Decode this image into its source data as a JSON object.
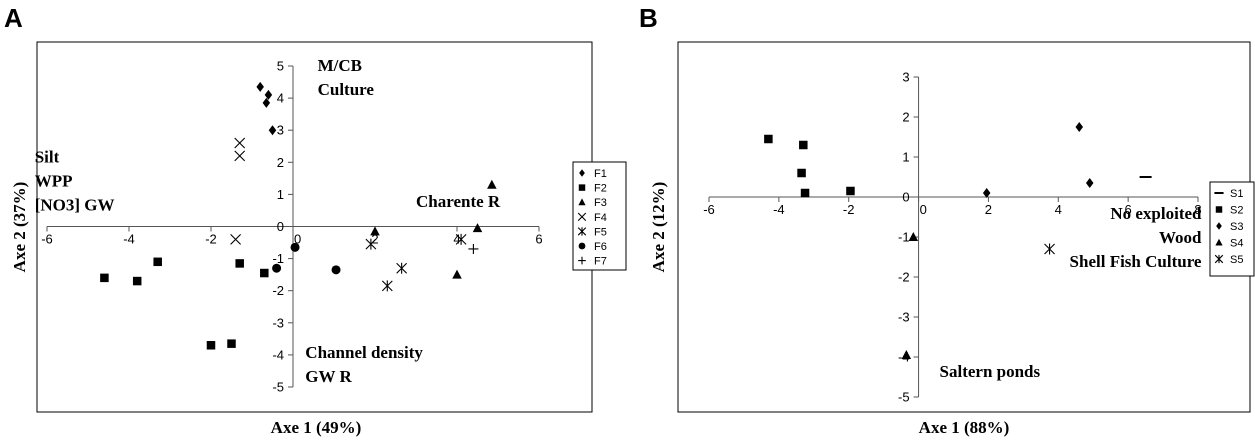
{
  "chart_data": [
    {
      "type": "scatter",
      "panel_label": "A",
      "xlabel": "Axe 1 (49%)",
      "ylabel": "Axe 2 (37%)",
      "xlim": [
        -6,
        6
      ],
      "ylim": [
        -5,
        5
      ],
      "xticks": [
        -6,
        -4,
        -2,
        0,
        2,
        4,
        6
      ],
      "yticks": [
        -5,
        -4,
        -3,
        -2,
        -1,
        0,
        1,
        2,
        3,
        4,
        5
      ],
      "legend_position": "right",
      "series": [
        {
          "name": "F1",
          "marker": "diamond",
          "points": [
            [
              -0.8,
              4.35
            ],
            [
              -0.6,
              4.1
            ],
            [
              -0.65,
              3.85
            ],
            [
              -0.5,
              3.0
            ]
          ]
        },
        {
          "name": "F2",
          "marker": "square",
          "points": [
            [
              -4.6,
              -1.6
            ],
            [
              -3.8,
              -1.7
            ],
            [
              -3.3,
              -1.1
            ],
            [
              -2.0,
              -3.7
            ],
            [
              -1.5,
              -3.65
            ],
            [
              -1.3,
              -1.15
            ],
            [
              -0.7,
              -1.45
            ]
          ]
        },
        {
          "name": "F3",
          "marker": "triangle",
          "points": [
            [
              2.0,
              -0.15
            ],
            [
              4.0,
              -1.5
            ],
            [
              4.5,
              -0.05
            ],
            [
              4.85,
              1.3
            ]
          ]
        },
        {
          "name": "F4",
          "marker": "x",
          "points": [
            [
              -1.3,
              2.6
            ],
            [
              -1.3,
              2.2
            ],
            [
              -1.4,
              -0.4
            ]
          ]
        },
        {
          "name": "F5",
          "marker": "star",
          "points": [
            [
              1.9,
              -0.55
            ],
            [
              2.3,
              -1.85
            ],
            [
              2.65,
              -1.3
            ],
            [
              4.1,
              -0.4
            ]
          ]
        },
        {
          "name": "F6",
          "marker": "circle",
          "points": [
            [
              -0.4,
              -1.3
            ],
            [
              0.05,
              -0.65
            ],
            [
              1.05,
              -1.35
            ]
          ]
        },
        {
          "name": "F7",
          "marker": "plus",
          "points": [
            [
              4.4,
              -0.7
            ]
          ]
        }
      ],
      "annotations": [
        {
          "lines": [
            "M/CB",
            "Culture"
          ],
          "x": 0.6,
          "y": 4.85,
          "anchor": "start"
        },
        {
          "lines": [
            "Silt",
            "WPP",
            "[NO3] GW"
          ],
          "x": -6.3,
          "y": 2.0,
          "anchor": "start"
        },
        {
          "lines": [
            "Charente R"
          ],
          "x": 3.0,
          "y": 0.6,
          "anchor": "start"
        },
        {
          "lines": [
            "Channel density",
            "GW R"
          ],
          "x": 0.3,
          "y": -4.1,
          "anchor": "start"
        }
      ]
    },
    {
      "type": "scatter",
      "panel_label": "B",
      "xlabel": "Axe 1 (88%)",
      "ylabel": "Axe 2 (12%)",
      "xlim": [
        -6,
        8
      ],
      "ylim": [
        -5,
        3
      ],
      "xticks": [
        -6,
        -4,
        -2,
        0,
        2,
        4,
        6,
        8
      ],
      "yticks": [
        -5,
        -4,
        -3,
        -2,
        -1,
        0,
        1,
        2,
        3
      ],
      "legend_position": "right",
      "series": [
        {
          "name": "S1",
          "marker": "dash",
          "points": [
            [
              6.5,
              0.5
            ]
          ]
        },
        {
          "name": "S2",
          "marker": "square",
          "points": [
            [
              -4.3,
              1.45
            ],
            [
              -3.3,
              1.3
            ],
            [
              -3.35,
              0.6
            ],
            [
              -3.25,
              0.1
            ],
            [
              -1.95,
              0.15
            ]
          ]
        },
        {
          "name": "S3",
          "marker": "diamond",
          "points": [
            [
              1.95,
              0.1
            ],
            [
              4.6,
              1.75
            ],
            [
              4.9,
              0.35
            ]
          ]
        },
        {
          "name": "S4",
          "marker": "triangle",
          "points": [
            [
              -0.15,
              -1.0
            ],
            [
              -0.35,
              -3.95
            ]
          ]
        },
        {
          "name": "S5",
          "marker": "star",
          "points": [
            [
              3.75,
              -1.3
            ]
          ]
        }
      ],
      "annotations": [
        {
          "lines": [
            "No exploited",
            "Wood",
            "Shell Fish Culture"
          ],
          "x": 8.1,
          "y": -0.55,
          "anchor": "end"
        },
        {
          "lines": [
            "Saltern ponds"
          ],
          "x": 0.6,
          "y": -4.5,
          "anchor": "start"
        }
      ]
    }
  ]
}
